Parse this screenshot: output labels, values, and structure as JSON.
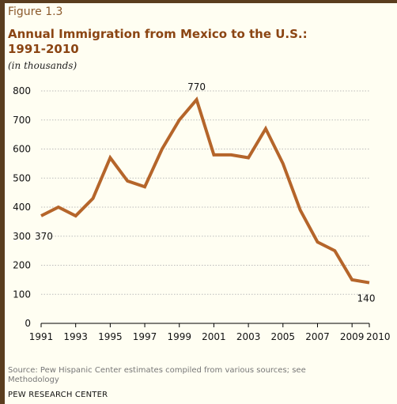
{
  "figure_label": "Figure 1.3",
  "title_line1": "Annual Immigration from Mexico to the U.S.:",
  "title_line2": "1991-2010",
  "subtitle": "(in thousands)",
  "source_line1": "Source: Pew Hispanic Center estimates compiled from various sources; see",
  "source_line2": "Methodology",
  "org": "PEW RESEARCH CENTER",
  "colors": {
    "line": "#b5652a",
    "axis": "#000000",
    "grid": "#bbbbbb",
    "title": "#8b4513"
  },
  "chart_data": {
    "type": "line",
    "x": [
      1991,
      1992,
      1993,
      1994,
      1995,
      1996,
      1997,
      1998,
      1999,
      2000,
      2001,
      2002,
      2003,
      2004,
      2005,
      2006,
      2007,
      2008,
      2009,
      2010
    ],
    "series": [
      {
        "values": [
          370,
          400,
          370,
          430,
          570,
          490,
          470,
          600,
          700,
          770,
          580,
          580,
          570,
          670,
          550,
          390,
          280,
          250,
          150,
          140
        ]
      }
    ],
    "xticks": [
      "1991",
      "1993",
      "1995",
      "1997",
      "1999",
      "2001",
      "2003",
      "2005",
      "2007",
      "2009",
      "2010"
    ],
    "yticks": [
      "0",
      "100",
      "200",
      "300",
      "400",
      "500",
      "600",
      "700",
      "800"
    ],
    "ylim": [
      0,
      800
    ],
    "xlim": [
      1991,
      2010
    ],
    "grid": true,
    "annotations": [
      {
        "x": 1991,
        "y": 370,
        "text": "370"
      },
      {
        "x": 2000,
        "y": 770,
        "text": "770"
      },
      {
        "x": 2010,
        "y": 140,
        "text": "140"
      }
    ]
  }
}
